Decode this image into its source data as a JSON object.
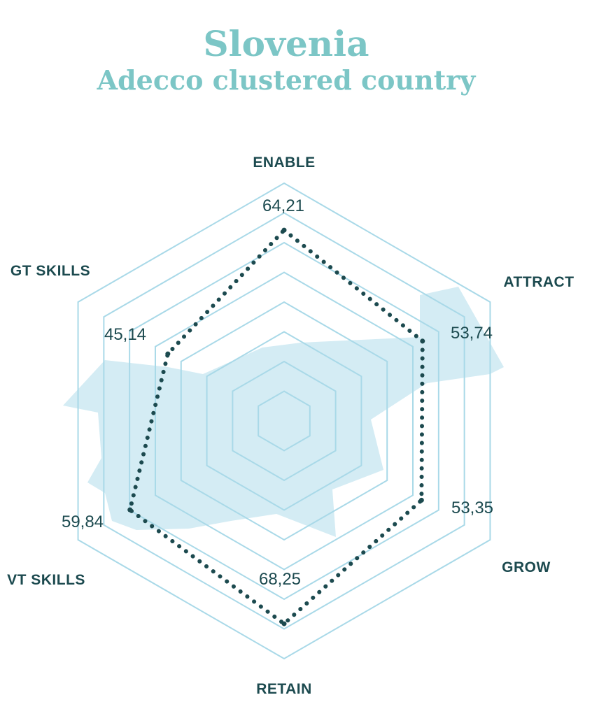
{
  "title": "Slovenia",
  "subtitle": "Adecco clustered country",
  "chart_data": {
    "type": "radar",
    "categories": [
      "ENABLE",
      "ATTRACT",
      "GROW",
      "RETAIN",
      "VT SKILLS",
      "GT SKILLS"
    ],
    "series": [
      {
        "values": [
          64.21,
          53.74,
          53.35,
          68.25,
          59.84,
          45.14
        ],
        "labels": [
          "64,21",
          "53,74",
          "53,35",
          "68,25",
          "59,84",
          "45,14"
        ]
      }
    ],
    "range": [
      0,
      80
    ],
    "gridlines": 8,
    "colors": {
      "grid": "#a9d9e8",
      "series": "#1c4a4f",
      "map": "#d4ecf4",
      "title": "#7cc6c6",
      "label": "#1c4a4f"
    }
  }
}
